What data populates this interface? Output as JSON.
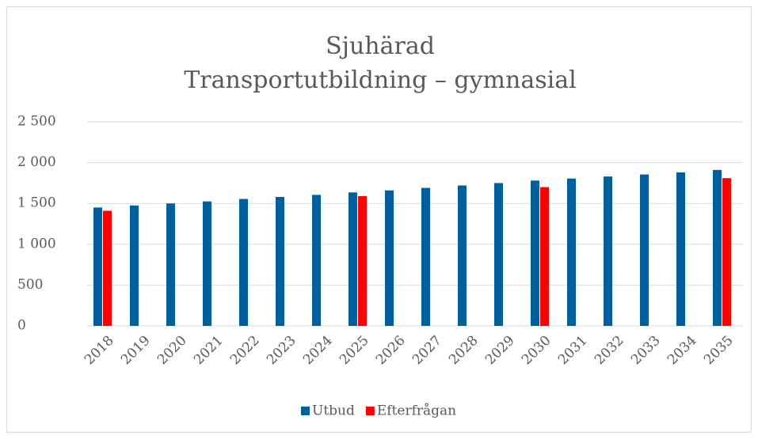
{
  "chart_data": {
    "type": "bar",
    "title": [
      "Sjuhärad",
      "Transportutbildning – gymnasial"
    ],
    "categories": [
      "2018",
      "2019",
      "2020",
      "2021",
      "2022",
      "2023",
      "2024",
      "2025",
      "2026",
      "2027",
      "2028",
      "2029",
      "2030",
      "2031",
      "2032",
      "2033",
      "2034",
      "2035"
    ],
    "series": [
      {
        "name": "Utbud",
        "color": "#00609c",
        "values": [
          1450,
          1475,
          1500,
          1525,
          1555,
          1580,
          1605,
          1635,
          1660,
          1690,
          1720,
          1750,
          1780,
          1805,
          1830,
          1855,
          1880,
          1910
        ]
      },
      {
        "name": "Efterfrågan",
        "color": "#ff0000",
        "values": [
          1410,
          null,
          null,
          null,
          null,
          null,
          null,
          1590,
          null,
          null,
          null,
          null,
          1700,
          null,
          null,
          null,
          null,
          1810
        ]
      }
    ],
    "ylim": [
      0,
      2500
    ],
    "yticks": [
      0,
      500,
      {
        "value": 1000,
        "label": "1 000"
      },
      {
        "value": 1500,
        "label": "1 500"
      },
      {
        "value": 2000,
        "label": "2 000"
      },
      {
        "value": 2500,
        "label": "2 500"
      }
    ],
    "grid": true,
    "legend": "bottom"
  }
}
